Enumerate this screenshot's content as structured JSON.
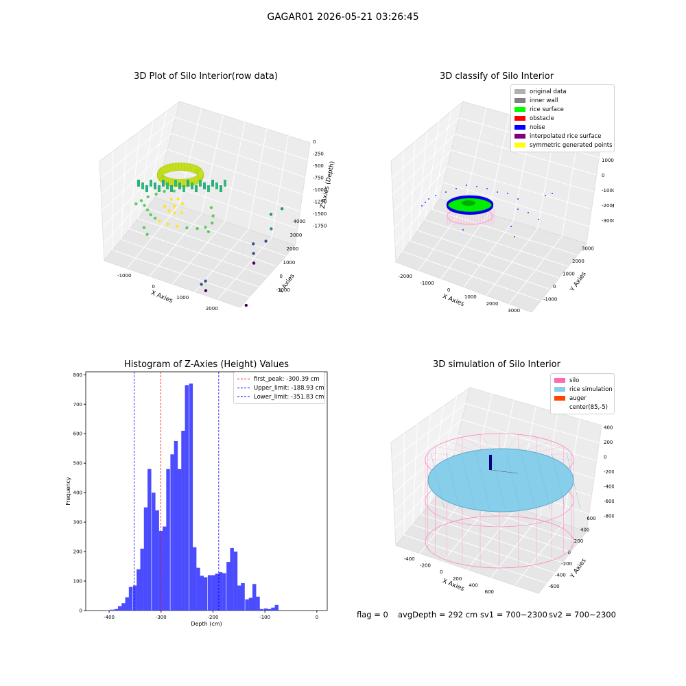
{
  "suptitle": "GAGAR01 2026-05-21 03:26:45",
  "status": {
    "flag": "flag = 0",
    "avg_depth": "avgDepth = 292 cm",
    "sv1": "sv1 = 700~2300",
    "sv2": "sv2 = 700~2300"
  },
  "chart_data": [
    {
      "type": "scatter",
      "title": "3D Plot of Silo Interior(row data)",
      "xlabel": "X Axies",
      "ylabel": "Y Axies",
      "zlabel": "Z Axies (Depth)",
      "xticks": [
        "-1000",
        "0",
        "1000",
        "2000"
      ],
      "yticks": [
        "-1000",
        "0",
        "1000",
        "2000",
        "3000",
        "4000"
      ],
      "zticks": [
        "0",
        "-250",
        "-500",
        "-750",
        "-1000",
        "-1250",
        "-1500",
        "-1750"
      ],
      "xlim": [
        -1800,
        2800
      ],
      "ylim": [
        -1200,
        4200
      ],
      "zlim": [
        -1900,
        100
      ],
      "colormap": "viridis",
      "series": [
        {
          "points": [
            [
              -1300,
              600,
              -400
            ],
            [
              -1100,
              400,
              -380
            ],
            [
              -900,
              200,
              -350
            ],
            [
              -700,
              0,
              -330
            ],
            [
              -500,
              -100,
              -320
            ],
            [
              -300,
              -200,
              -300
            ],
            [
              0,
              -200,
              -300
            ],
            [
              300,
              -150,
              -300
            ],
            [
              600,
              -50,
              -310
            ],
            [
              900,
              100,
              -320
            ],
            [
              1100,
              300,
              -330
            ],
            [
              1200,
              600,
              -340
            ],
            [
              1100,
              900,
              -330
            ],
            [
              900,
              1200,
              -320
            ],
            [
              -1200,
              900,
              -420
            ],
            [
              -1000,
              1100,
              -400
            ],
            [
              -800,
              1300,
              -380
            ],
            [
              -500,
              1400,
              -350
            ],
            [
              -1350,
              300,
              -360
            ],
            [
              1250,
              200,
              -350
            ],
            [
              300,
              200,
              -150
            ],
            [
              0,
              300,
              -120
            ],
            [
              -300,
              200,
              -150
            ],
            [
              -200,
              500,
              -100
            ],
            [
              200,
              500,
              -110
            ],
            [
              0,
              600,
              -90
            ],
            [
              100,
              100,
              -160
            ],
            [
              -100,
              100,
              -160
            ],
            [
              2200,
              3000,
              -900
            ],
            [
              2300,
              2800,
              -1100
            ],
            [
              2200,
              2600,
              -1300
            ],
            [
              2500,
              3200,
              -800
            ],
            [
              1000,
              200,
              -1500
            ],
            [
              1100,
              300,
              -1450
            ],
            [
              1200,
              100,
              -1550
            ],
            [
              1800,
              2500,
              -1400
            ],
            [
              1900,
              2300,
              -1500
            ],
            [
              2000,
              2100,
              -1600
            ],
            [
              2400,
              600,
              -1800
            ],
            [
              -800,
              -300,
              -500
            ],
            [
              -600,
              -500,
              -520
            ]
          ]
        }
      ]
    },
    {
      "type": "scatter",
      "title": "3D classify of Silo Interior",
      "xlabel": "X Axies",
      "ylabel": "Y Axies",
      "zlabel": "Z Axies (Depth)",
      "xticks": [
        "-2000",
        "-1000",
        "0",
        "1000",
        "2000",
        "3000"
      ],
      "yticks": [
        "-1000",
        "0",
        "1000",
        "2000",
        "3000"
      ],
      "zticks": [
        "1000",
        "0",
        "-1000",
        "-2000",
        "-3000"
      ],
      "xlim": [
        -2200,
        3200
      ],
      "ylim": [
        -1200,
        3400
      ],
      "zlim": [
        -3400,
        1200
      ],
      "legend": [
        {
          "label": "original data",
          "color": "#b0b0b0"
        },
        {
          "label": "inner wall",
          "color": "#808080"
        },
        {
          "label": "rice surface",
          "color": "#00ff00"
        },
        {
          "label": "obstacle",
          "color": "#ff0000"
        },
        {
          "label": "noise",
          "color": "#0000ff"
        },
        {
          "label": "interpolated rice surface",
          "color": "#800080"
        },
        {
          "label": "symmetric generated points",
          "color": "#ffff00"
        }
      ]
    },
    {
      "type": "bar",
      "title": "Histogram of Z-Axies (Height) Values",
      "xlabel": "Depth (cm)",
      "ylabel": "Frequency",
      "xlim": [
        -445,
        20
      ],
      "ylim": [
        0,
        810
      ],
      "xticks": [
        -400,
        -300,
        -200,
        -100,
        0
      ],
      "yticks": [
        0,
        100,
        200,
        300,
        400,
        500,
        600,
        700,
        800
      ],
      "bar_color": "#4c4cff",
      "bin_width": 7.2,
      "bins": [
        {
          "x": -405,
          "value": 1
        },
        {
          "x": -398,
          "value": 3
        },
        {
          "x": -390,
          "value": 5
        },
        {
          "x": -383,
          "value": 15
        },
        {
          "x": -376,
          "value": 25
        },
        {
          "x": -369,
          "value": 45
        },
        {
          "x": -362,
          "value": 80
        },
        {
          "x": -354,
          "value": 85
        },
        {
          "x": -347,
          "value": 140
        },
        {
          "x": -340,
          "value": 210
        },
        {
          "x": -333,
          "value": 350
        },
        {
          "x": -326,
          "value": 480
        },
        {
          "x": -318,
          "value": 400
        },
        {
          "x": -311,
          "value": 340
        },
        {
          "x": -304,
          "value": 270
        },
        {
          "x": -297,
          "value": 285
        },
        {
          "x": -290,
          "value": 480
        },
        {
          "x": -282,
          "value": 530
        },
        {
          "x": -275,
          "value": 575
        },
        {
          "x": -268,
          "value": 480
        },
        {
          "x": -261,
          "value": 610
        },
        {
          "x": -254,
          "value": 765
        },
        {
          "x": -246,
          "value": 770
        },
        {
          "x": -239,
          "value": 215
        },
        {
          "x": -232,
          "value": 145
        },
        {
          "x": -225,
          "value": 118
        },
        {
          "x": -218,
          "value": 113
        },
        {
          "x": -210,
          "value": 120
        },
        {
          "x": -203,
          "value": 120
        },
        {
          "x": -196,
          "value": 125
        },
        {
          "x": -189,
          "value": 130
        },
        {
          "x": -182,
          "value": 127
        },
        {
          "x": -174,
          "value": 165
        },
        {
          "x": -167,
          "value": 212
        },
        {
          "x": -160,
          "value": 200
        },
        {
          "x": -153,
          "value": 85
        },
        {
          "x": -146,
          "value": 93
        },
        {
          "x": -138,
          "value": 38
        },
        {
          "x": -131,
          "value": 43
        },
        {
          "x": -124,
          "value": 90
        },
        {
          "x": -117,
          "value": 47
        },
        {
          "x": -110,
          "value": 5
        },
        {
          "x": -102,
          "value": 7
        },
        {
          "x": -95,
          "value": 5
        },
        {
          "x": -88,
          "value": 10
        },
        {
          "x": -81,
          "value": 19
        }
      ],
      "vlines": [
        {
          "label": "first_peak: -300.39 cm",
          "x": -300.39,
          "color": "#ff0000"
        },
        {
          "label": "Upper_limit: -188.93 cm",
          "x": -188.93,
          "color": "#0000ff"
        },
        {
          "label": "Lower_limit: -351.83 cm",
          "x": -351.83,
          "color": "#0000ff"
        }
      ]
    },
    {
      "type": "scatter",
      "title": "3D simulation of Silo Interior",
      "xlabel": "X Axies",
      "ylabel": "Y Axies",
      "zlabel": "Z Axies (Depth)",
      "xticks": [
        "-400",
        "-200",
        "0",
        "200",
        "400",
        "600"
      ],
      "yticks": [
        "-600",
        "-400",
        "-200",
        "0",
        "200",
        "400",
        "600"
      ],
      "zticks": [
        "400",
        "200",
        "0",
        "-200",
        "-400",
        "-600",
        "-800"
      ],
      "legend": [
        {
          "label": "silo",
          "color": "#ff69b4"
        },
        {
          "label": "rice simulation",
          "color": "#87ceeb"
        },
        {
          "label": "auger",
          "color": "#ff4500"
        },
        {
          "label": "center(85,-5)",
          "color": ""
        }
      ]
    }
  ]
}
